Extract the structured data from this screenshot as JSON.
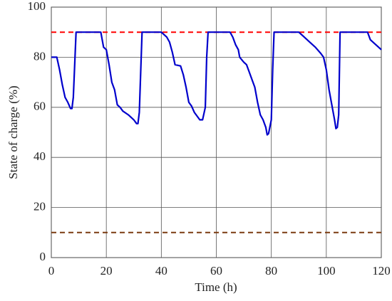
{
  "chart_data": {
    "type": "line",
    "xlabel": "Time (h)",
    "ylabel": "State of charge (%)",
    "xlim": [
      0,
      120
    ],
    "xticks": [
      0,
      20,
      40,
      60,
      80,
      100,
      120
    ],
    "ylim": [
      0,
      100
    ],
    "yticks": [
      0,
      20,
      40,
      60,
      80,
      100
    ],
    "grid": true,
    "reference_lines": [
      {
        "value": 90,
        "color": "#ff0000"
      },
      {
        "value": 10,
        "color": "#7a3a10"
      }
    ],
    "series": [
      {
        "color": "#0000cc",
        "x": [
          0,
          2,
          3,
          4,
          5,
          6,
          7,
          7.5,
          8,
          9,
          18,
          19,
          20,
          21,
          22,
          23,
          24,
          25,
          26,
          28,
          30,
          31,
          31.5,
          32,
          33,
          40,
          42,
          43,
          44,
          45,
          47,
          48,
          49,
          50,
          51,
          52,
          54,
          55,
          56,
          56.5,
          57,
          65,
          66,
          67,
          68,
          68.5,
          70,
          71,
          72,
          73,
          74,
          75,
          76,
          77,
          78,
          78.5,
          79,
          80,
          80.5,
          81,
          90,
          92,
          94,
          96,
          98,
          99,
          100,
          101,
          102,
          103,
          103.5,
          104,
          104.5,
          105,
          115,
          116,
          118,
          120
        ],
        "values": [
          80,
          80,
          75,
          69,
          64,
          62,
          59.5,
          59.5,
          64,
          90,
          90,
          84,
          83,
          77,
          70,
          67,
          61,
          60,
          58.5,
          57,
          55,
          53.5,
          53.5,
          58,
          90,
          90,
          88,
          86,
          82,
          77,
          76.5,
          73,
          68,
          62,
          60.5,
          58,
          55,
          55,
          60,
          80,
          90,
          90,
          88,
          85,
          83,
          80,
          78,
          77,
          74,
          71,
          68,
          62,
          57,
          55,
          52,
          49,
          49.5,
          55,
          75,
          90,
          90,
          88,
          86,
          84,
          81.5,
          80,
          75,
          67,
          61,
          55,
          51.5,
          52,
          57,
          90,
          90,
          87,
          85,
          83
        ]
      }
    ]
  }
}
